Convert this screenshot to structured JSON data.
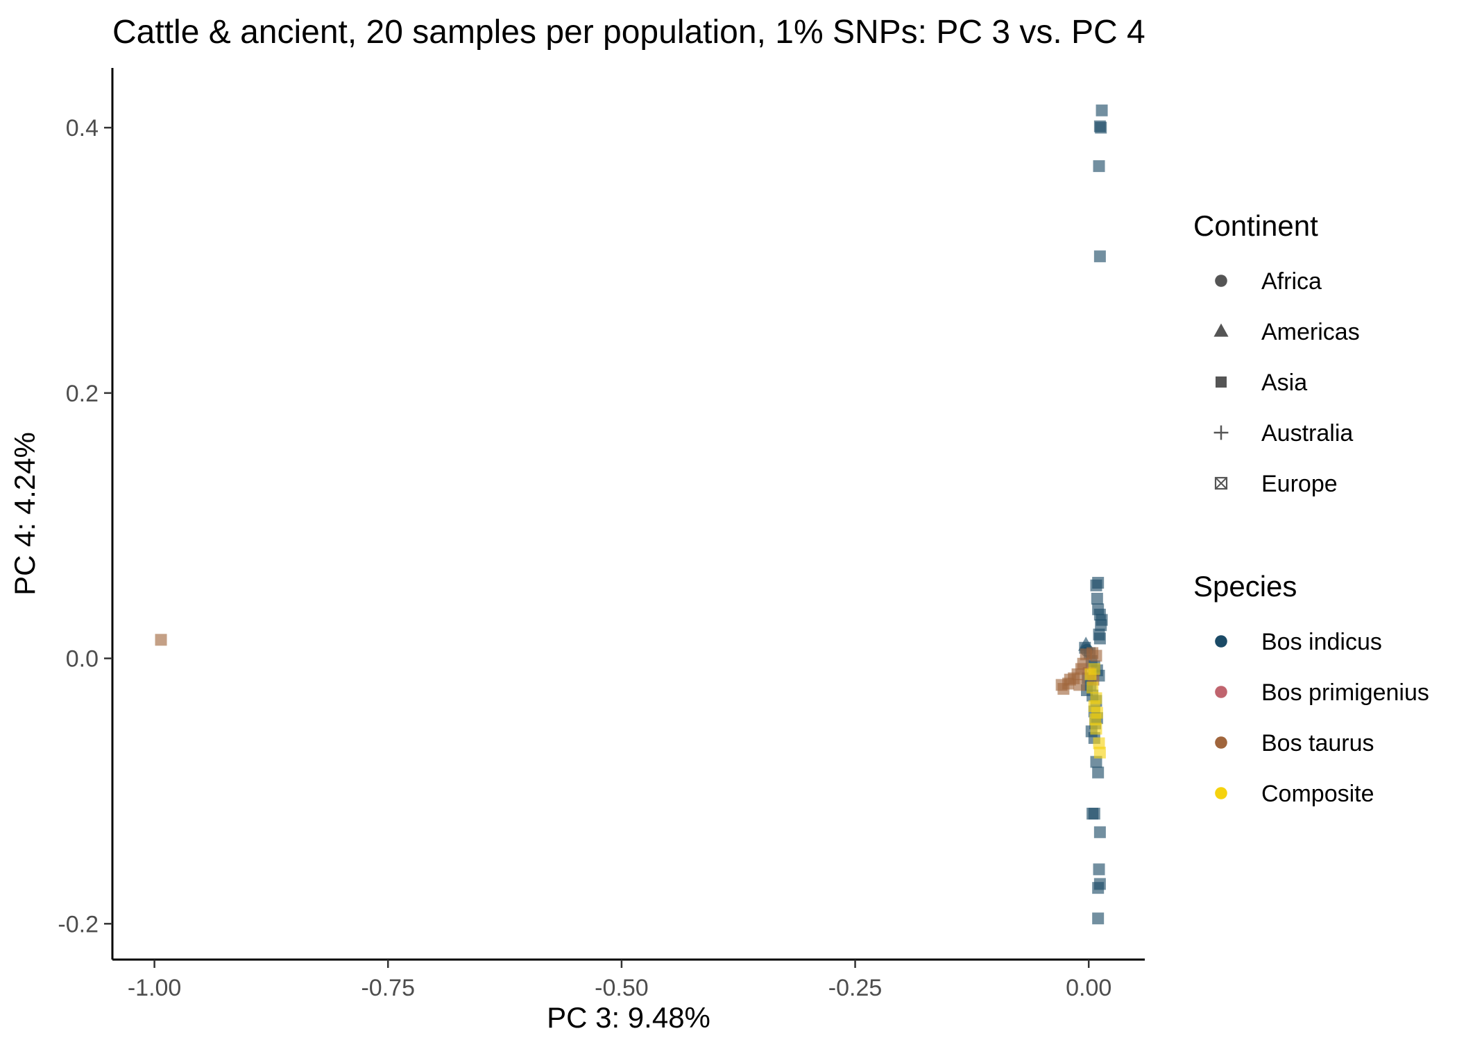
{
  "chart_data": {
    "type": "scatter",
    "title": "Cattle & ancient, 20 samples per population, 1% SNPs: PC 3 vs. PC 4",
    "xlabel": "PC 3: 9.48%",
    "ylabel": "PC 4: 4.24%",
    "xlim": [
      -1.045,
      0.06
    ],
    "ylim": [
      -0.227,
      0.445
    ],
    "x_ticks": [
      -1.0,
      -0.75,
      -0.5,
      -0.25,
      0.0
    ],
    "x_tick_labels": [
      "-1.00",
      "-0.75",
      "-0.50",
      "-0.25",
      "0.00"
    ],
    "y_ticks": [
      -0.2,
      0.0,
      0.2,
      0.4
    ],
    "y_tick_labels": [
      "-0.2",
      "0.0",
      "0.2",
      "0.4"
    ],
    "grid": false,
    "legend_position": "right",
    "legends": [
      {
        "title": "Continent",
        "type": "shape",
        "entries": [
          {
            "label": "Africa",
            "shape": "circle"
          },
          {
            "label": "Americas",
            "shape": "triangle"
          },
          {
            "label": "Asia",
            "shape": "square"
          },
          {
            "label": "Australia",
            "shape": "plus"
          },
          {
            "label": "Europe",
            "shape": "boxcross"
          }
        ]
      },
      {
        "title": "Species",
        "type": "color",
        "entries": [
          {
            "label": "Bos indicus",
            "color": "#1b4a66"
          },
          {
            "label": "Bos primigenius",
            "color": "#c0646e"
          },
          {
            "label": "Bos taurus",
            "color": "#a0653c"
          },
          {
            "label": "Composite",
            "color": "#f5d20e"
          }
        ]
      }
    ],
    "series": [
      {
        "name": "Bos indicus",
        "color": "#1b4a66",
        "points": [
          {
            "x": 0.014,
            "y": 0.413,
            "shape": "square"
          },
          {
            "x": 0.012,
            "y": 0.401,
            "shape": "square"
          },
          {
            "x": 0.013,
            "y": 0.4,
            "shape": "square"
          },
          {
            "x": 0.011,
            "y": 0.371,
            "shape": "square"
          },
          {
            "x": 0.012,
            "y": 0.303,
            "shape": "square"
          },
          {
            "x": 0.01,
            "y": 0.057,
            "shape": "square"
          },
          {
            "x": 0.008,
            "y": 0.055,
            "shape": "square"
          },
          {
            "x": 0.009,
            "y": 0.045,
            "shape": "square"
          },
          {
            "x": 0.01,
            "y": 0.037,
            "shape": "square"
          },
          {
            "x": 0.012,
            "y": 0.033,
            "shape": "square"
          },
          {
            "x": 0.014,
            "y": 0.029,
            "shape": "square"
          },
          {
            "x": 0.013,
            "y": 0.025,
            "shape": "square"
          },
          {
            "x": 0.011,
            "y": 0.018,
            "shape": "square"
          },
          {
            "x": 0.012,
            "y": 0.015,
            "shape": "square"
          },
          {
            "x": -0.003,
            "y": 0.01,
            "shape": "triangle"
          },
          {
            "x": -0.002,
            "y": 0.006,
            "shape": "circle"
          },
          {
            "x": 0.001,
            "y": 0.004,
            "shape": "square"
          },
          {
            "x": -0.004,
            "y": 0.008,
            "shape": "square"
          },
          {
            "x": 0.003,
            "y": -0.002,
            "shape": "square"
          },
          {
            "x": 0.006,
            "y": -0.006,
            "shape": "square"
          },
          {
            "x": 0.009,
            "y": -0.009,
            "shape": "square"
          },
          {
            "x": 0.011,
            "y": -0.013,
            "shape": "square"
          },
          {
            "x": -0.001,
            "y": -0.015,
            "shape": "square"
          },
          {
            "x": 0.002,
            "y": -0.02,
            "shape": "square"
          },
          {
            "x": -0.002,
            "y": -0.024,
            "shape": "square"
          },
          {
            "x": 0.004,
            "y": -0.028,
            "shape": "square"
          },
          {
            "x": 0.008,
            "y": -0.032,
            "shape": "square"
          },
          {
            "x": 0.006,
            "y": -0.04,
            "shape": "square"
          },
          {
            "x": 0.009,
            "y": -0.045,
            "shape": "square"
          },
          {
            "x": 0.007,
            "y": -0.049,
            "shape": "square"
          },
          {
            "x": 0.003,
            "y": -0.055,
            "shape": "square"
          },
          {
            "x": 0.006,
            "y": -0.06,
            "shape": "square"
          },
          {
            "x": 0.008,
            "y": -0.078,
            "shape": "square"
          },
          {
            "x": 0.01,
            "y": -0.086,
            "shape": "square"
          },
          {
            "x": 0.004,
            "y": -0.117,
            "shape": "square"
          },
          {
            "x": 0.006,
            "y": -0.117,
            "shape": "square"
          },
          {
            "x": 0.012,
            "y": -0.131,
            "shape": "square"
          },
          {
            "x": 0.011,
            "y": -0.159,
            "shape": "square"
          },
          {
            "x": 0.012,
            "y": -0.17,
            "shape": "square"
          },
          {
            "x": 0.01,
            "y": -0.173,
            "shape": "square"
          },
          {
            "x": 0.01,
            "y": -0.196,
            "shape": "square"
          }
        ]
      },
      {
        "name": "Bos taurus",
        "color": "#a0653c",
        "points": [
          {
            "x": -0.993,
            "y": 0.014,
            "shape": "square"
          },
          {
            "x": -0.029,
            "y": -0.02,
            "shape": "square"
          },
          {
            "x": -0.027,
            "y": -0.023,
            "shape": "square"
          },
          {
            "x": -0.022,
            "y": -0.019,
            "shape": "square"
          },
          {
            "x": -0.02,
            "y": -0.016,
            "shape": "square"
          },
          {
            "x": -0.016,
            "y": -0.015,
            "shape": "square"
          },
          {
            "x": -0.012,
            "y": -0.012,
            "shape": "square"
          },
          {
            "x": -0.008,
            "y": -0.008,
            "shape": "square"
          },
          {
            "x": -0.006,
            "y": -0.004,
            "shape": "square"
          },
          {
            "x": -0.003,
            "y": 0.003,
            "shape": "square"
          },
          {
            "x": 0.004,
            "y": 0.004,
            "shape": "square"
          },
          {
            "x": 0.008,
            "y": 0.002,
            "shape": "square"
          },
          {
            "x": -0.01,
            "y": -0.02,
            "shape": "square"
          },
          {
            "x": 0.0,
            "y": -0.011,
            "shape": "square"
          },
          {
            "x": 0.005,
            "y": -0.016,
            "shape": "square"
          }
        ]
      },
      {
        "name": "Composite",
        "color": "#f5d20e",
        "points": [
          {
            "x": 0.002,
            "y": -0.012,
            "shape": "square"
          },
          {
            "x": 0.006,
            "y": -0.008,
            "shape": "square"
          },
          {
            "x": 0.004,
            "y": -0.022,
            "shape": "square"
          },
          {
            "x": 0.008,
            "y": -0.03,
            "shape": "square"
          },
          {
            "x": 0.006,
            "y": -0.036,
            "shape": "square"
          },
          {
            "x": 0.009,
            "y": -0.041,
            "shape": "square"
          },
          {
            "x": 0.007,
            "y": -0.046,
            "shape": "square"
          },
          {
            "x": 0.008,
            "y": -0.053,
            "shape": "square"
          },
          {
            "x": 0.011,
            "y": -0.064,
            "shape": "square"
          },
          {
            "x": 0.012,
            "y": -0.071,
            "shape": "square"
          }
        ]
      }
    ]
  }
}
